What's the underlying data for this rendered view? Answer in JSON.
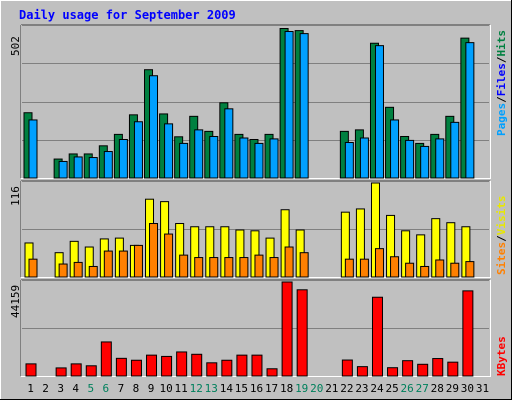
{
  "chart_data": [
    {
      "type": "bar",
      "title": "Daily usage for September 2009",
      "ylabel_parts": [
        "Pages",
        "/",
        "Files",
        "/",
        "Hits"
      ],
      "ymax_label": "502",
      "ylim": [
        0,
        502
      ],
      "categories": [
        "1",
        "2",
        "3",
        "4",
        "5",
        "6",
        "7",
        "8",
        "9",
        "10",
        "11",
        "12",
        "13",
        "14",
        "15",
        "16",
        "17",
        "18",
        "19",
        "20",
        "21",
        "22",
        "23",
        "24",
        "25",
        "26",
        "27",
        "28",
        "29",
        "30",
        "31"
      ],
      "weekend_days": [
        "5",
        "6",
        "12",
        "13",
        "19",
        "20",
        "26",
        "27"
      ],
      "series": [
        {
          "name": "Hits",
          "values": [
            217,
            0,
            63,
            80,
            80,
            107,
            145,
            210,
            360,
            213,
            137,
            205,
            155,
            250,
            145,
            128,
            145,
            497,
            490,
            0,
            0,
            155,
            160,
            448,
            235,
            138,
            115,
            145,
            205,
            465,
            0
          ]
        },
        {
          "name": "Files",
          "values": [
            0,
            0,
            0,
            0,
            0,
            0,
            0,
            0,
            0,
            0,
            0,
            0,
            0,
            0,
            0,
            0,
            0,
            0,
            0,
            0,
            0,
            0,
            0,
            0,
            0,
            0,
            0,
            0,
            0,
            0,
            0
          ]
        },
        {
          "name": "Pages",
          "values": [
            193,
            0,
            55,
            70,
            68,
            88,
            128,
            187,
            340,
            180,
            115,
            160,
            138,
            230,
            133,
            115,
            130,
            487,
            480,
            0,
            0,
            118,
            133,
            440,
            193,
            125,
            105,
            130,
            185,
            450,
            0
          ]
        }
      ]
    },
    {
      "type": "bar",
      "ylabel_parts": [
        "Sites",
        "/",
        "Visits"
      ],
      "ymax_label": "116",
      "ylim": [
        0,
        116
      ],
      "series": [
        {
          "name": "Visits",
          "values": [
            42,
            0,
            30,
            44,
            37,
            47,
            48,
            39,
            96,
            93,
            66,
            62,
            62,
            62,
            58,
            57,
            48,
            83,
            58,
            0,
            0,
            80,
            84,
            116,
            76,
            57,
            52,
            72,
            67,
            62,
            0
          ]
        },
        {
          "name": "Sites",
          "values": [
            22,
            0,
            16,
            18,
            13,
            32,
            32,
            39,
            66,
            53,
            27,
            24,
            24,
            24,
            24,
            27,
            24,
            37,
            30,
            0,
            0,
            22,
            22,
            35,
            25,
            17,
            13,
            21,
            17,
            19,
            0
          ]
        }
      ]
    },
    {
      "type": "bar",
      "ylabel_parts": [
        "KBytes"
      ],
      "ymax_label": "44159",
      "ylim": [
        0,
        44159
      ],
      "series": [
        {
          "name": "KBytes",
          "values": [
            5700,
            0,
            3800,
            5700,
            4800,
            16000,
            8300,
            7400,
            9800,
            9200,
            11300,
            10200,
            6200,
            7400,
            9800,
            9800,
            3400,
            44159,
            40500,
            0,
            0,
            7500,
            4400,
            37000,
            3900,
            7200,
            5500,
            8200,
            6500,
            40000,
            0
          ]
        }
      ]
    }
  ],
  "colors": {
    "background": "#c0c0c0",
    "title": "#0000ff",
    "hits": "#00a0ff",
    "files": "#0000ff",
    "pages": "#008040",
    "visits": "#ffff00",
    "sites": "#ff8000",
    "kbytes": "#ff0000",
    "weekend_label": "#00805c",
    "weekday_label": "#000000"
  }
}
